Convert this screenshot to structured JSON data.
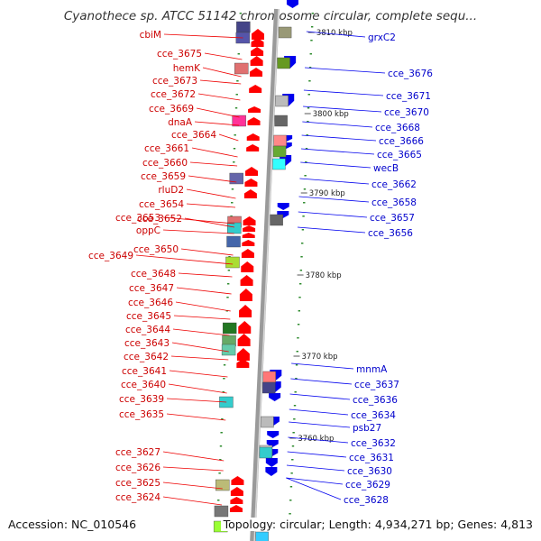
{
  "title": "Cyanothece sp. ATCC 51142 chromosome circular, complete sequ...",
  "footer": {
    "accession": "Accession: NC_010546",
    "summary": "Topology: circular; Length: 4,934,271 bp; Genes: 4,813"
  },
  "colors": {
    "backbone": "#9a9a9a",
    "forward_strand_label": "#cc0000",
    "reverse_strand_label": "#0000cc"
  },
  "scale_ticks": [
    {
      "label": "3810 kbp"
    },
    {
      "label": "3800 kbp"
    },
    {
      "label": "3790 kbp"
    },
    {
      "label": "3780 kbp"
    },
    {
      "label": "3770 kbp"
    },
    {
      "label": "3760 kbp"
    }
  ],
  "left_labels": [
    "cbiM",
    "cce_3675",
    "hemK",
    "cce_3673",
    "cce_3672",
    "cce_3669",
    "dnaA",
    "cce_3664",
    "cce_3661",
    "cce_3660",
    "cce_3659",
    "rluD2",
    "cce_3654",
    "cce_3653",
    "cce_3652",
    "oppC",
    "cce_3650",
    "cce_3649",
    "cce_3648",
    "cce_3647",
    "cce_3646",
    "cce_3645",
    "cce_3644",
    "cce_3643",
    "cce_3642",
    "cce_3641",
    "cce_3640",
    "cce_3639",
    "cce_3635",
    "cce_3627",
    "cce_3626",
    "cce_3625",
    "cce_3624"
  ],
  "right_labels": [
    "grxC2",
    "cce_3676",
    "cce_3671",
    "cce_3670",
    "cce_3668",
    "cce_3666",
    "cce_3665",
    "wecB",
    "cce_3662",
    "cce_3658",
    "cce_3657",
    "cce_3656",
    "mnmA",
    "cce_3637",
    "cce_3636",
    "cce_3634",
    "psb27",
    "cce_3632",
    "cce_3631",
    "cce_3630",
    "cce_3629",
    "cce_3628"
  ]
}
